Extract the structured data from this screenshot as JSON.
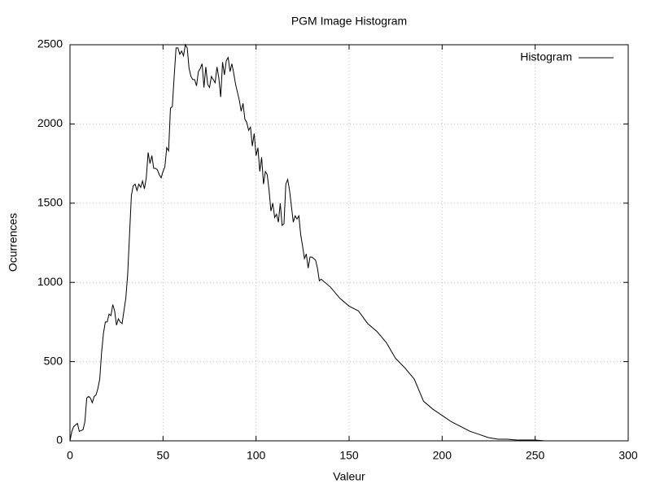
{
  "chart_data": {
    "type": "line",
    "title": "PGM Image Histogram",
    "x_label": "Valeur",
    "y_label": "Ocurrences",
    "x": [
      0,
      1,
      2,
      3,
      4,
      5,
      6,
      7,
      8,
      9,
      10,
      11,
      12,
      13,
      14,
      15,
      16,
      17,
      18,
      19,
      20,
      21,
      22,
      23,
      24,
      25,
      26,
      27,
      28,
      29,
      30,
      31,
      32,
      33,
      34,
      35,
      36,
      37,
      38,
      39,
      40,
      41,
      42,
      43,
      44,
      45,
      46,
      47,
      48,
      49,
      50,
      51,
      52,
      53,
      54,
      55,
      56,
      57,
      58,
      59,
      60,
      61,
      62,
      63,
      64,
      65,
      66,
      67,
      68,
      69,
      70,
      71,
      72,
      73,
      74,
      75,
      76,
      77,
      78,
      79,
      80,
      81,
      82,
      83,
      84,
      85,
      86,
      87,
      88,
      89,
      90,
      91,
      92,
      93,
      94,
      95,
      96,
      97,
      98,
      99,
      100,
      101,
      102,
      103,
      104,
      105,
      106,
      107,
      108,
      109,
      110,
      111,
      112,
      113,
      114,
      115,
      116,
      117,
      118,
      119,
      120,
      121,
      122,
      123,
      124,
      125,
      126,
      127,
      128,
      129,
      130,
      131,
      132,
      133,
      134,
      135,
      140,
      145,
      150,
      155,
      160,
      165,
      170,
      175,
      180,
      185,
      190,
      195,
      200,
      205,
      210,
      215,
      220,
      225,
      230,
      235,
      240,
      245,
      250,
      255
    ],
    "series": [
      {
        "name": "Histogram",
        "color": "#000000",
        "values": [
          0,
          60,
          90,
          100,
          110,
          60,
          65,
          70,
          120,
          270,
          280,
          270,
          240,
          280,
          290,
          330,
          390,
          560,
          680,
          750,
          750,
          800,
          790,
          860,
          820,
          730,
          770,
          750,
          740,
          820,
          900,
          1050,
          1300,
          1550,
          1610,
          1620,
          1580,
          1620,
          1600,
          1640,
          1590,
          1660,
          1820,
          1750,
          1800,
          1720,
          1720,
          1710,
          1680,
          1660,
          1700,
          1730,
          1850,
          1830,
          2100,
          2110,
          2300,
          2480,
          2480,
          2440,
          2460,
          2430,
          2500,
          2480,
          2350,
          2300,
          2280,
          2280,
          2240,
          2330,
          2350,
          2380,
          2230,
          2360,
          2250,
          2230,
          2300,
          2280,
          2260,
          2360,
          2290,
          2170,
          2390,
          2310,
          2400,
          2420,
          2330,
          2380,
          2320,
          2250,
          2200,
          2150,
          2080,
          2130,
          2030,
          2010,
          1960,
          1980,
          1860,
          1940,
          1800,
          1850,
          1700,
          1790,
          1620,
          1700,
          1680,
          1580,
          1450,
          1500,
          1410,
          1430,
          1380,
          1500,
          1360,
          1370,
          1620,
          1650,
          1580,
          1480,
          1380,
          1420,
          1400,
          1420,
          1300,
          1230,
          1150,
          1180,
          1090,
          1160,
          1160,
          1150,
          1140,
          1090,
          1010,
          1020,
          970,
          900,
          850,
          820,
          740,
          690,
          620,
          520,
          460,
          390,
          250,
          200,
          160,
          120,
          90,
          60,
          40,
          20,
          10,
          10,
          5,
          5,
          5,
          0
        ]
      }
    ],
    "xlim": [
      0,
      300
    ],
    "xticks": [
      0,
      50,
      100,
      150,
      200,
      250,
      300
    ],
    "ylim": [
      0,
      2500
    ],
    "yticks": [
      0,
      500,
      1000,
      1500,
      2000,
      2500
    ],
    "grid": true,
    "legend": "top-right"
  }
}
